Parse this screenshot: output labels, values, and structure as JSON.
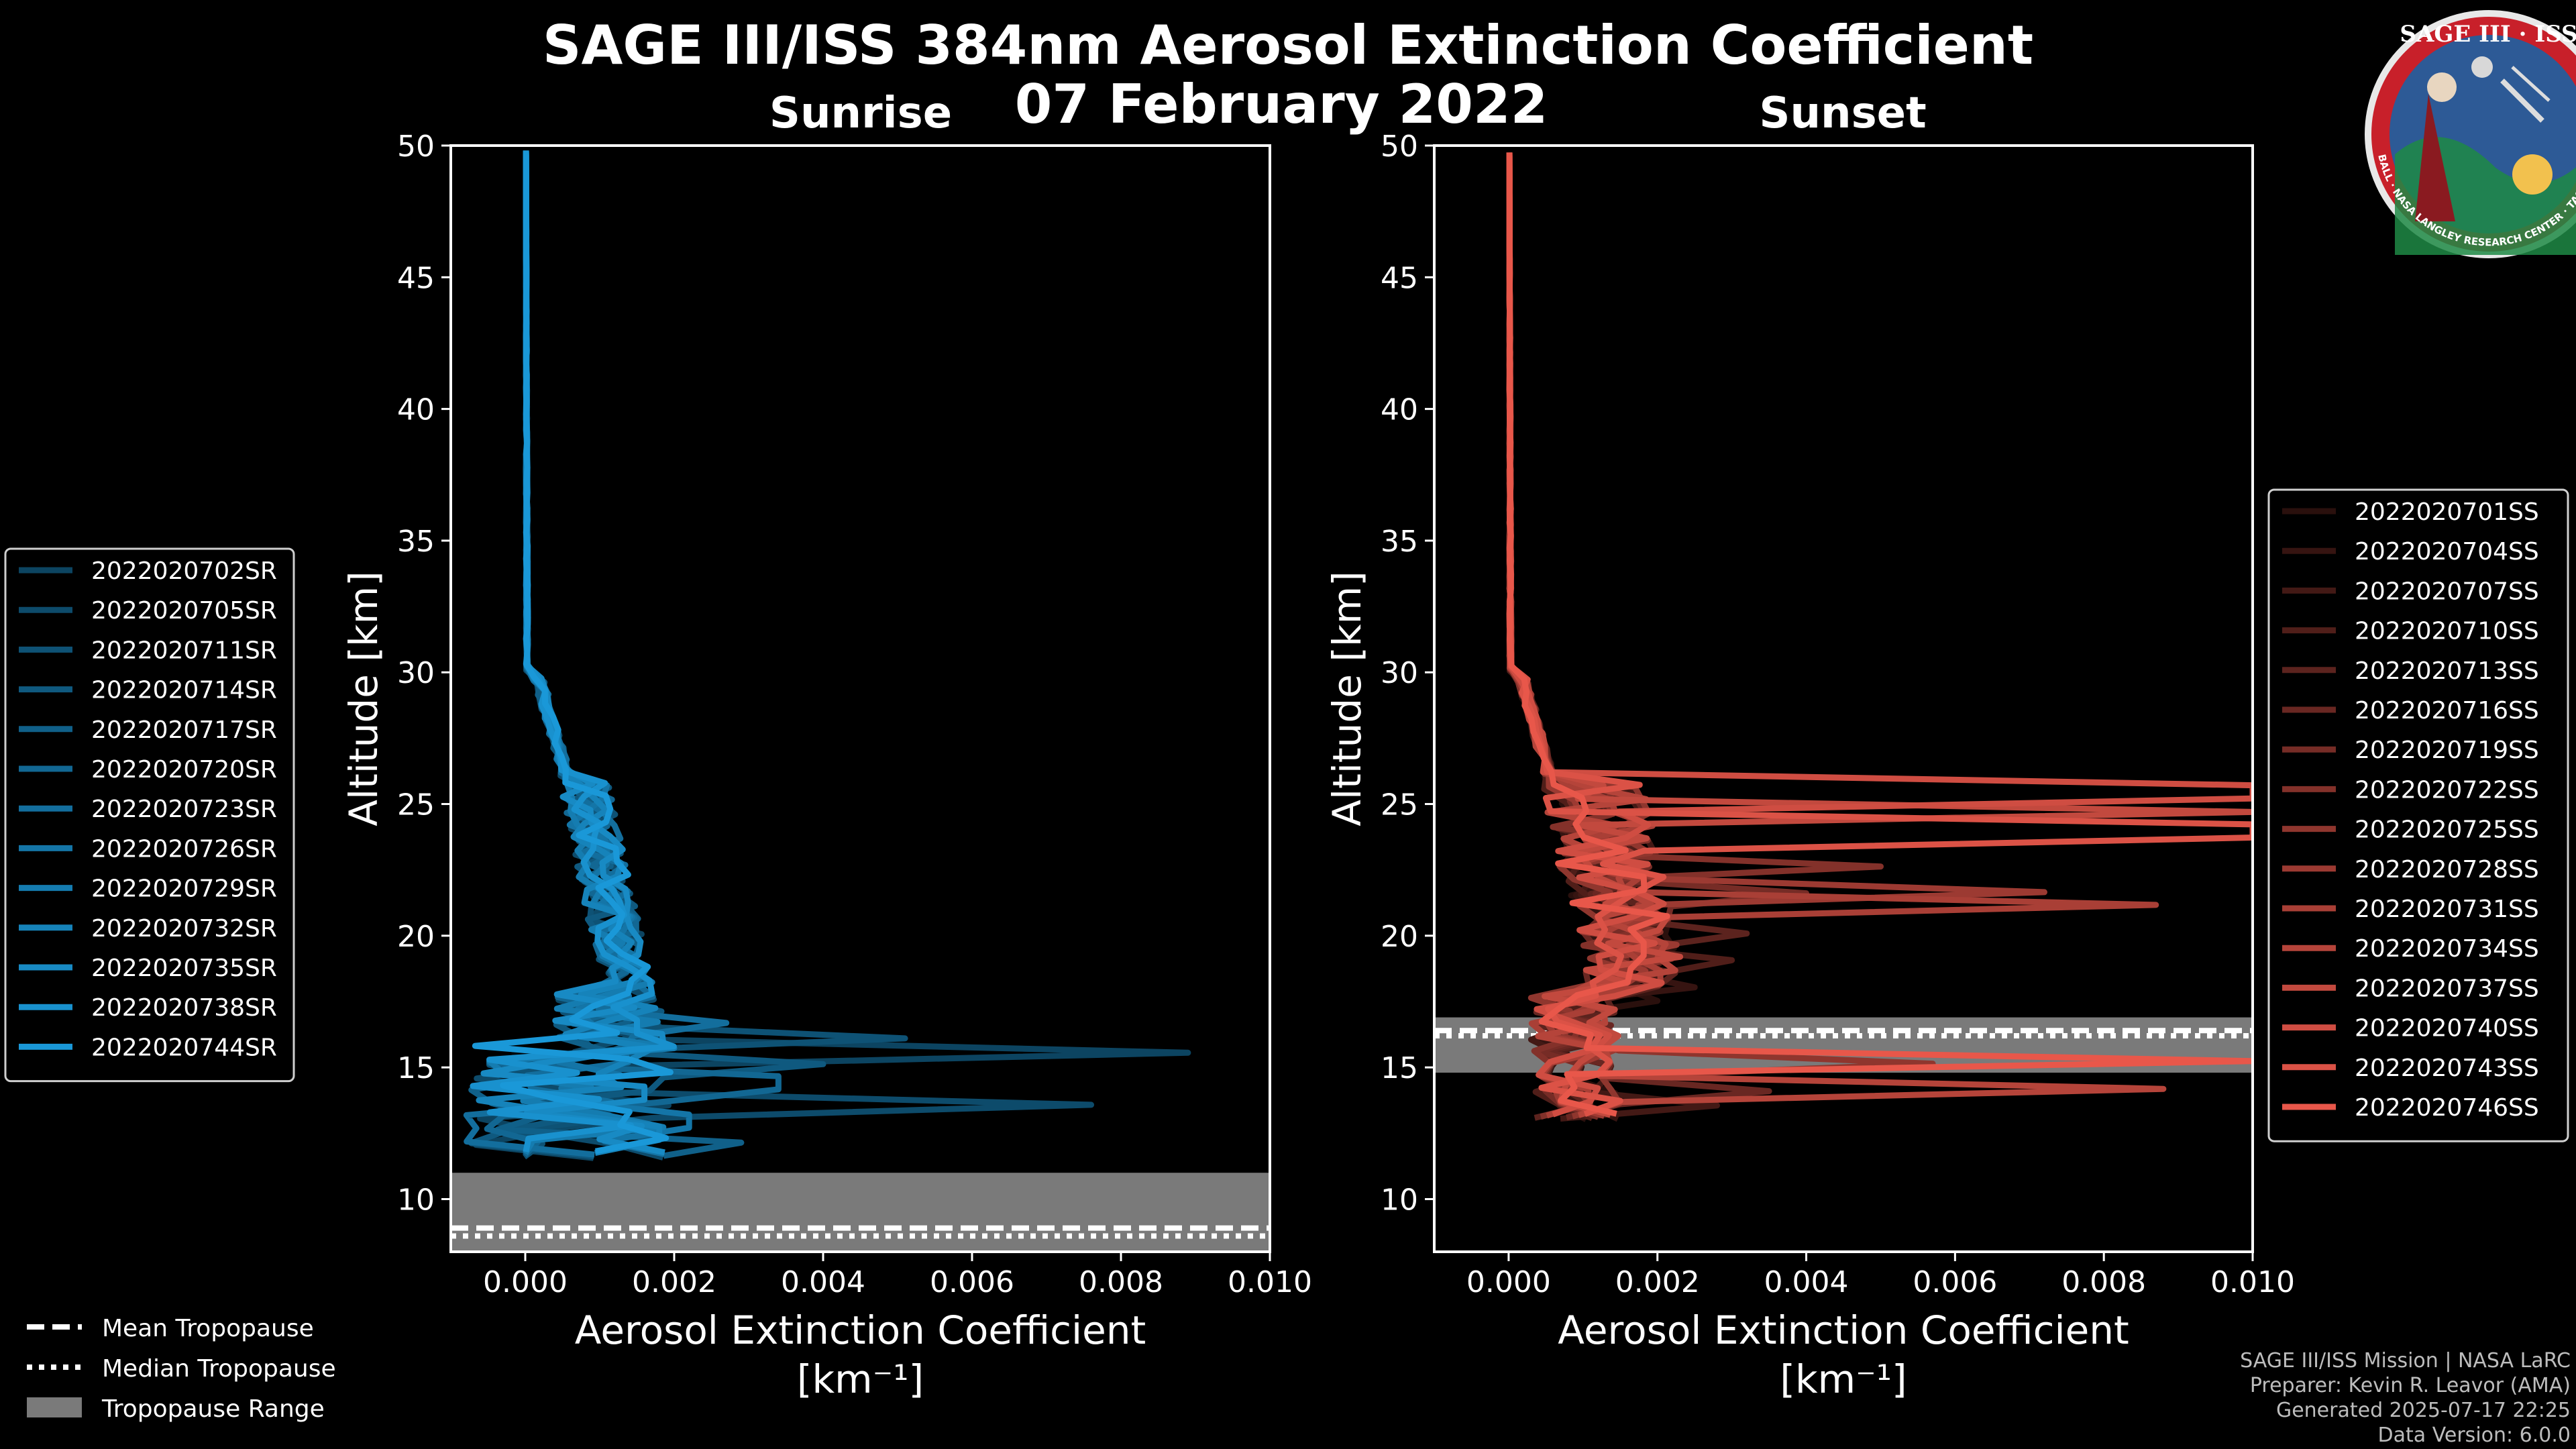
{
  "title_line1": "SAGE III/ISS 384nm Aerosol Extinction Coefficient",
  "title_line2": "07 February 2022",
  "logo": {
    "top_text": "SAGE III · ISS",
    "ring_text": "BALL · NASA LANGLEY RESEARCH CENTER · TAS-I · ESA"
  },
  "credits": [
    "SAGE III/ISS Mission | NASA LaRC",
    "Preparer: Kevin R. Leavor (AMA)",
    "Generated 2025-07-17 22:25",
    "Data Version: 6.0.0"
  ],
  "tropopause_legend": {
    "mean": "Mean Tropopause",
    "median": "Median Tropopause",
    "range": "Tropopause Range"
  },
  "colors": {
    "sunrise": "#1a98d8",
    "sunset": "#e8574a",
    "trop_range": "#7a7a7a",
    "frame": "#ffffff"
  },
  "chart_data": [
    {
      "type": "line",
      "title": "Sunrise",
      "xlabel": "Aerosol Extinction Coefficient",
      "xunit": "[km⁻¹]",
      "ylabel": "Altitude [km]",
      "xlim": [
        -0.001,
        0.01
      ],
      "ylim": [
        8,
        50
      ],
      "xticks": [
        0.0,
        0.002,
        0.004,
        0.006,
        0.008,
        0.01
      ],
      "xtick_labels": [
        "0.000",
        "0.002",
        "0.004",
        "0.006",
        "0.008",
        "0.010"
      ],
      "yticks": [
        10,
        15,
        20,
        25,
        30,
        35,
        40,
        45,
        50
      ],
      "tropopause": {
        "mean": 8.9,
        "median": 8.6,
        "range": [
          8.0,
          11.0
        ]
      },
      "series": [
        {
          "name": "2022020702SR",
          "peak": {
            "alt": 15.5,
            "val": 0.0089
          }
        },
        {
          "name": "2022020705SR",
          "peak": {
            "alt": 13.6,
            "val": 0.0076
          }
        },
        {
          "name": "2022020711SR",
          "peak": {
            "alt": 16.0,
            "val": 0.0051
          }
        },
        {
          "name": "2022020714SR",
          "peak": {
            "alt": 15.0,
            "val": 0.004
          }
        },
        {
          "name": "2022020717SR",
          "peak": {
            "alt": 12.0,
            "val": 0.0029
          }
        },
        {
          "name": "2022020720SR",
          "peak": {
            "alt": 14.4,
            "val": 0.0034
          }
        },
        {
          "name": "2022020723SR",
          "peak": {
            "alt": 16.8,
            "val": 0.0027
          }
        },
        {
          "name": "2022020726SR",
          "peak": {
            "alt": 13.0,
            "val": 0.0022
          }
        },
        {
          "name": "2022020729SR",
          "peak": {
            "alt": 15.8,
            "val": 0.002
          }
        },
        {
          "name": "2022020732SR",
          "peak": {
            "alt": 12.5,
            "val": 0.0018
          }
        },
        {
          "name": "2022020735SR",
          "peak": {
            "alt": 14.0,
            "val": 0.0016
          }
        },
        {
          "name": "2022020738SR",
          "peak": {
            "alt": 16.5,
            "val": 0.0015
          }
        },
        {
          "name": "2022020744SR",
          "peak": {
            "alt": 13.3,
            "val": 0.0014
          }
        }
      ]
    },
    {
      "type": "line",
      "title": "Sunset",
      "xlabel": "Aerosol Extinction Coefficient",
      "xunit": "[km⁻¹]",
      "ylabel": "Altitude [km]",
      "xlim": [
        -0.001,
        0.01
      ],
      "ylim": [
        8,
        50
      ],
      "xticks": [
        0.0,
        0.002,
        0.004,
        0.006,
        0.008,
        0.01
      ],
      "xtick_labels": [
        "0.000",
        "0.002",
        "0.004",
        "0.006",
        "0.008",
        "0.010"
      ],
      "yticks": [
        10,
        15,
        20,
        25,
        30,
        35,
        40,
        45,
        50
      ],
      "tropopause": {
        "mean": 16.4,
        "median": 16.2,
        "range": [
          14.8,
          16.9
        ]
      },
      "series": [
        {
          "name": "2022020701SS",
          "peak": {
            "alt": 17.5,
            "val": 0.002
          }
        },
        {
          "name": "2022020704SS",
          "peak": {
            "alt": 18.0,
            "val": 0.0025
          }
        },
        {
          "name": "2022020707SS",
          "peak": {
            "alt": 13.5,
            "val": 0.0028
          }
        },
        {
          "name": "2022020710SS",
          "peak": {
            "alt": 19.0,
            "val": 0.003
          }
        },
        {
          "name": "2022020713SS",
          "peak": {
            "alt": 20.0,
            "val": 0.0032
          }
        },
        {
          "name": "2022020716SS",
          "peak": {
            "alt": 14.0,
            "val": 0.0035
          }
        },
        {
          "name": "2022020719SS",
          "peak": {
            "alt": 21.5,
            "val": 0.004
          }
        },
        {
          "name": "2022020722SS",
          "peak": {
            "alt": 22.5,
            "val": 0.005
          }
        },
        {
          "name": "2022020725SS",
          "peak": {
            "alt": 15.0,
            "val": 0.0057
          }
        },
        {
          "name": "2022020728SS",
          "peak": {
            "alt": 21.5,
            "val": 0.0072
          }
        },
        {
          "name": "2022020731SS",
          "peak": {
            "alt": 21.0,
            "val": 0.0087
          }
        },
        {
          "name": "2022020734SS",
          "peak": {
            "alt": 14.0,
            "val": 0.0088
          }
        },
        {
          "name": "2022020737SS",
          "peak": {
            "alt": 24.5,
            "val": 0.01
          }
        },
        {
          "name": "2022020740SS",
          "peak": {
            "alt": 25.5,
            "val": 0.01
          }
        },
        {
          "name": "2022020743SS",
          "peak": {
            "alt": 24.0,
            "val": 0.01
          }
        },
        {
          "name": "2022020746SS",
          "peak": {
            "alt": 15.2,
            "val": 0.01
          }
        }
      ]
    }
  ]
}
